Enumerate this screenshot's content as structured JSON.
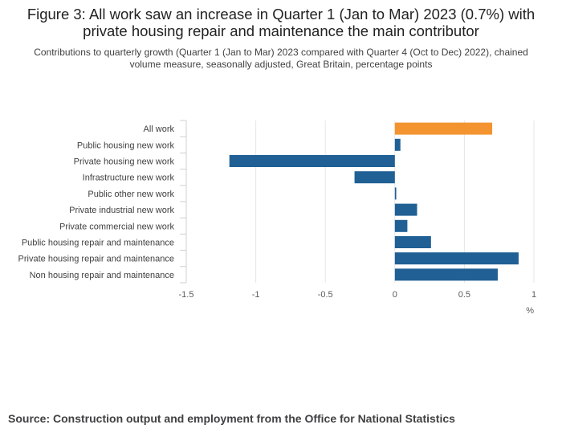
{
  "title": "Figure 3: All work saw an increase in Quarter 1 (Jan to Mar) 2023 (0.7%) with private housing repair and maintenance the main contributor",
  "subtitle": "Contributions to quarterly growth (Quarter 1 (Jan to Mar) 2023 compared with Quarter 4 (Oct to Dec) 2022), chained volume measure, seasonally adjusted, Great Britain, percentage points",
  "source": "Source: Construction output and employment from the Office for National Statistics",
  "colors": {
    "highlight": "#f39431",
    "bar": "#206095",
    "grid": "#e6e6e6",
    "axis_text": "#5a5a5a"
  },
  "chart_data": {
    "type": "bar",
    "orientation": "horizontal",
    "categories": [
      "All work",
      "Public housing new work",
      "Private housing new work",
      "Infrastructure new work",
      "Public other new work",
      "Private industrial new work",
      "Private commercial new work",
      "Public housing repair and maintenance",
      "Private housing repair and maintenance",
      "Non housing repair and maintenance"
    ],
    "values": [
      0.7,
      0.04,
      -1.19,
      -0.29,
      0.01,
      0.16,
      0.09,
      0.26,
      0.89,
      0.74
    ],
    "highlight": [
      "All work"
    ],
    "xlim": [
      -1.5,
      1
    ],
    "xticks": [
      -1.5,
      -1,
      -0.5,
      0,
      0.5,
      1
    ],
    "xtick_labels": [
      "-1.5",
      "-1",
      "-0.5",
      "0",
      "0.5",
      "1"
    ],
    "xlabel": "%",
    "grid": true
  }
}
